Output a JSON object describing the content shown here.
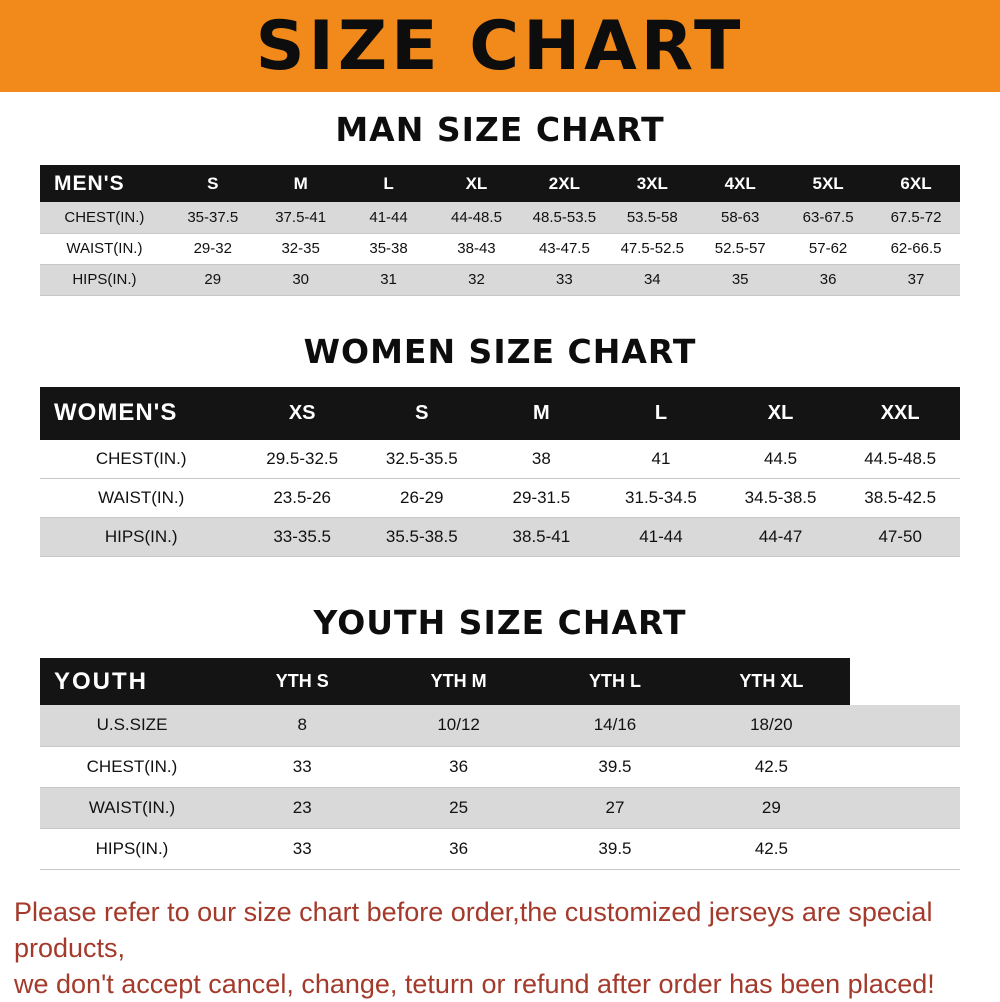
{
  "banner": {
    "title": "SIZE CHART",
    "bg_color": "#F1891B"
  },
  "sections": [
    {
      "id": "men",
      "heading": "MAN SIZE CHART",
      "header": [
        "MEN'S",
        "S",
        "M",
        "L",
        "XL",
        "2XL",
        "3XL",
        "4XL",
        "5XL",
        "6XL"
      ],
      "rows": [
        {
          "label": "CHEST(IN.)",
          "values": [
            "35-37.5",
            "37.5-41",
            "41-44",
            "44-48.5",
            "48.5-53.5",
            "53.5-58",
            "58-63",
            "63-67.5",
            "67.5-72"
          ]
        },
        {
          "label": "WAIST(IN.)",
          "values": [
            "29-32",
            "32-35",
            "35-38",
            "38-43",
            "43-47.5",
            "47.5-52.5",
            "52.5-57",
            "57-62",
            "62-66.5"
          ]
        },
        {
          "label": "HIPS(IN.)",
          "values": [
            "29",
            "30",
            "31",
            "32",
            "33",
            "34",
            "35",
            "36",
            "37"
          ]
        }
      ]
    },
    {
      "id": "women",
      "heading": "WOMEN SIZE CHART",
      "header": [
        "WOMEN'S",
        "XS",
        "S",
        "M",
        "L",
        "XL",
        "XXL"
      ],
      "rows": [
        {
          "label": "CHEST(IN.)",
          "values": [
            "29.5-32.5",
            "32.5-35.5",
            "38",
            "41",
            "44.5",
            "44.5-48.5"
          ]
        },
        {
          "label": "WAIST(IN.)",
          "values": [
            "23.5-26",
            "26-29",
            "29-31.5",
            "31.5-34.5",
            "34.5-38.5",
            "38.5-42.5"
          ]
        },
        {
          "label": "HIPS(IN.)",
          "values": [
            "33-35.5",
            "35.5-38.5",
            "38.5-41",
            "41-44",
            "44-47",
            "47-50"
          ]
        }
      ]
    },
    {
      "id": "youth",
      "heading": "YOUTH SIZE CHART",
      "header": [
        "YOUTH",
        "YTH S",
        "YTH M",
        "YTH L",
        "YTH XL"
      ],
      "rows": [
        {
          "label": "U.S.SIZE",
          "values": [
            "8",
            "10/12",
            "14/16",
            "18/20"
          ]
        },
        {
          "label": "CHEST(IN.)",
          "values": [
            "33",
            "36",
            "39.5",
            "42.5"
          ]
        },
        {
          "label": "WAIST(IN.)",
          "values": [
            "23",
            "25",
            "27",
            "29"
          ]
        },
        {
          "label": "HIPS(IN.)",
          "values": [
            "33",
            "36",
            "39.5",
            "42.5"
          ]
        }
      ]
    }
  ],
  "footer": {
    "lines": [
      "Please refer to our size chart before order,the customized jerseys are special products,",
      "we don't accept cancel, change, teturn or refund after order has been placed!"
    ],
    "text_color": "#A43A2B"
  },
  "colors": {
    "banner_orange": "#F1891B",
    "table_header_bg": "#141414",
    "row_shade_gray": "#D9D9D9"
  }
}
